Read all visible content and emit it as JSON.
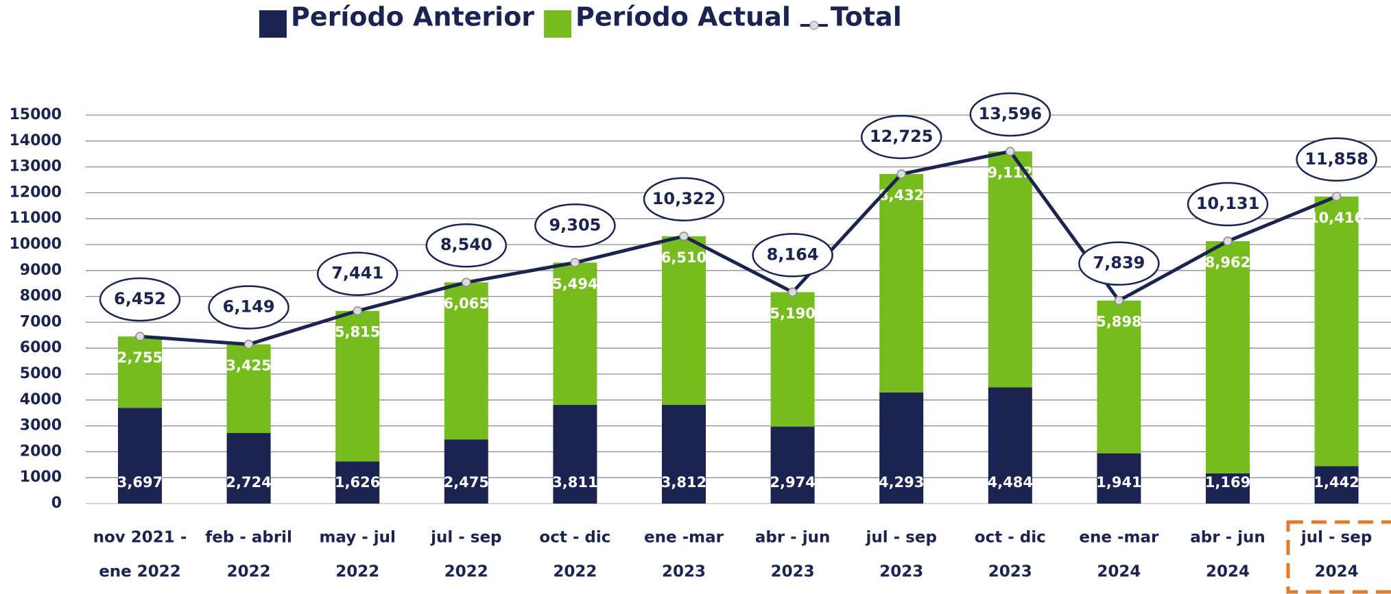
{
  "chart_data": {
    "type": "bar",
    "stacked": true,
    "categories": [
      [
        "nov 2021 -",
        "ene 2022"
      ],
      [
        "feb - abril",
        "2022"
      ],
      [
        "may - jul",
        "2022"
      ],
      [
        "jul - sep",
        "2022"
      ],
      [
        "oct - dic",
        "2022"
      ],
      [
        "ene -mar",
        "2023"
      ],
      [
        "abr - jun",
        "2023"
      ],
      [
        "jul - sep",
        "2023"
      ],
      [
        "oct - dic",
        "2023"
      ],
      [
        "ene -mar",
        "2024"
      ],
      [
        "abr - jun",
        "2024"
      ],
      [
        "jul - sep",
        "2024"
      ]
    ],
    "series": [
      {
        "name": "Período Anterior",
        "color": "#1b2350",
        "values": [
          3697,
          2724,
          1626,
          2475,
          3811,
          3812,
          2974,
          4293,
          4484,
          1941,
          1169,
          1442
        ],
        "value_labels": [
          "3,697",
          "2,724",
          "1,626",
          "2,475",
          "3,811",
          "3,812",
          "2,974",
          "4,293",
          "4,484",
          "1,941",
          "1,169",
          "1,442"
        ]
      },
      {
        "name": "Período Actual",
        "color": "#77bc1f",
        "values": [
          2755,
          3425,
          5815,
          6065,
          5494,
          6510,
          5190,
          8432,
          9112,
          5898,
          8962,
          10416
        ],
        "value_labels": [
          "2,755",
          "3,425",
          "5,815",
          "6,065",
          "5,494",
          "6,510",
          "5,190",
          "8,432",
          "9,112",
          "5,898",
          "8,962",
          "10,416"
        ]
      },
      {
        "name": "Total",
        "type": "line",
        "color": "#1b2350",
        "values": [
          6452,
          6149,
          7441,
          8540,
          9305,
          10322,
          8164,
          12725,
          13596,
          7839,
          10131,
          11858
        ],
        "value_labels": [
          "6,452",
          "6,149",
          "7,441",
          "8,540",
          "9,305",
          "10,322",
          "8,164",
          "12,725",
          "13,596",
          "7,839",
          "10,131",
          "11,858"
        ]
      }
    ],
    "ylim": [
      0,
      15000
    ],
    "yticks": [
      0,
      1000,
      2000,
      3000,
      4000,
      5000,
      6000,
      7000,
      8000,
      9000,
      10000,
      11000,
      12000,
      13000,
      14000,
      15000
    ],
    "grid": true,
    "legend": "top"
  }
}
